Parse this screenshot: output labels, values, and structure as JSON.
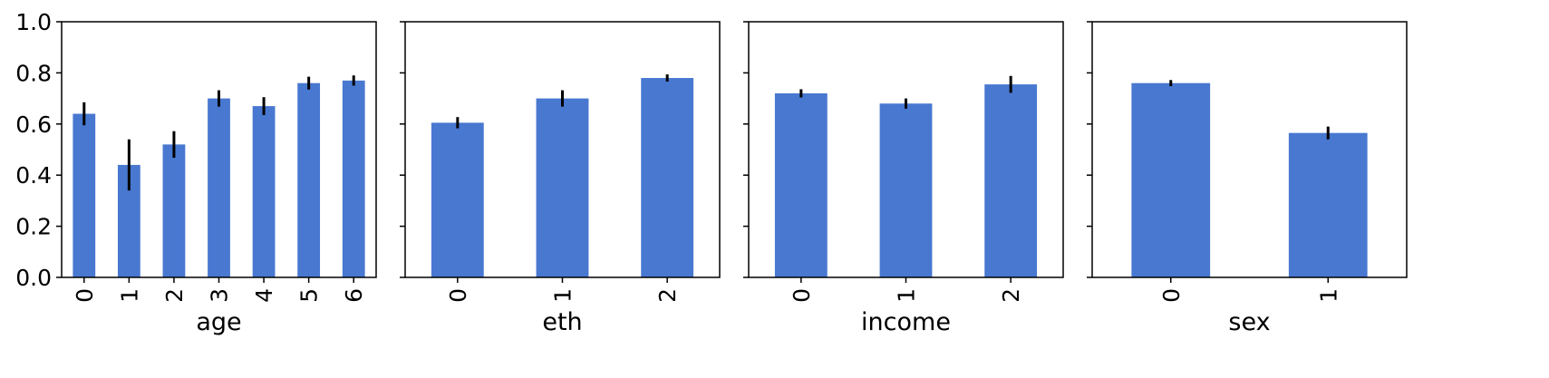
{
  "chart_data": {
    "type": "bar",
    "shared_y": true,
    "ylim": [
      0,
      1
    ],
    "yticks": [
      "0.0",
      "0.2",
      "0.4",
      "0.6",
      "0.8",
      "1.0"
    ],
    "bar_color": "#4878d0",
    "error_color": "#000000",
    "grid": false,
    "legend": "none",
    "subplots": [
      {
        "xlabel": "age",
        "categories": [
          "0",
          "1",
          "2",
          "3",
          "4",
          "5",
          "6"
        ],
        "values": [
          0.64,
          0.44,
          0.52,
          0.7,
          0.67,
          0.76,
          0.77
        ],
        "errors": [
          0.045,
          0.1,
          0.052,
          0.032,
          0.035,
          0.025,
          0.02
        ]
      },
      {
        "xlabel": "eth",
        "categories": [
          "0",
          "1",
          "2"
        ],
        "values": [
          0.605,
          0.7,
          0.78
        ],
        "errors": [
          0.022,
          0.032,
          0.014
        ]
      },
      {
        "xlabel": "income",
        "categories": [
          "0",
          "1",
          "2"
        ],
        "values": [
          0.72,
          0.68,
          0.755
        ],
        "errors": [
          0.016,
          0.02,
          0.033
        ]
      },
      {
        "xlabel": "sex",
        "categories": [
          "0",
          "1"
        ],
        "values": [
          0.76,
          0.565
        ],
        "errors": [
          0.012,
          0.025
        ]
      }
    ]
  }
}
